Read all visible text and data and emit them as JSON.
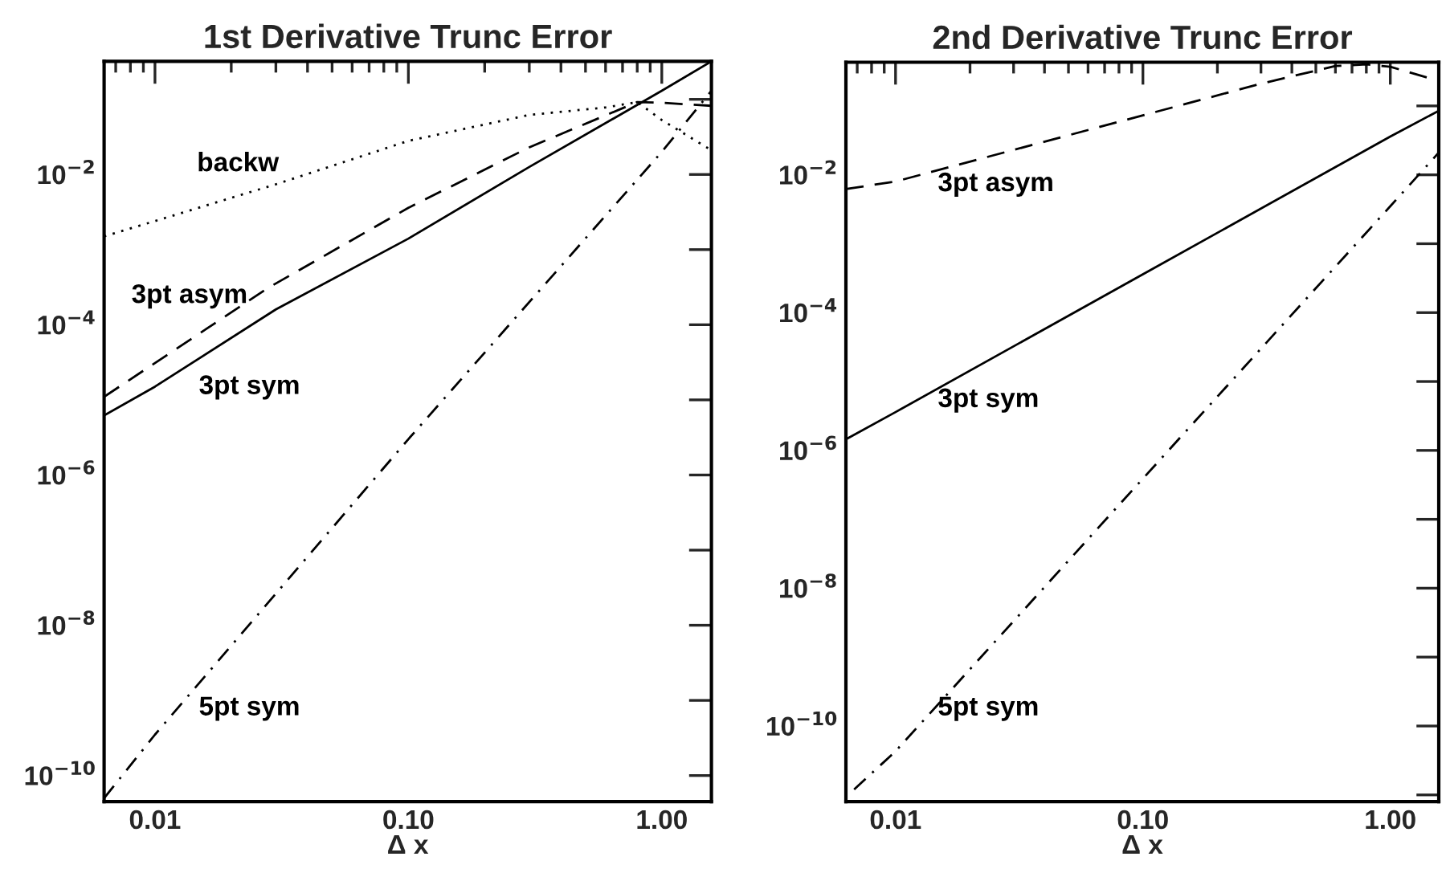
{
  "chart_data": [
    {
      "type": "line",
      "title": "1st Derivative Trunc Error",
      "xlabel": "Δ x",
      "log": "xy",
      "xlim": [
        0.0063,
        1.57
      ],
      "xticks": [
        {
          "value": 0.01,
          "label": "0.01"
        },
        {
          "value": 0.1,
          "label": "0.10"
        },
        {
          "value": 1,
          "label": "1.00"
        }
      ],
      "ylim": [
        4.5e-11,
        0.32
      ],
      "yticks": [
        {
          "value": 1e-10,
          "label": "10$^{−10}$"
        },
        {
          "value": 1e-09,
          "label": null
        },
        {
          "value": 1e-08,
          "label": "10$^{−8}$"
        },
        {
          "value": 1e-07,
          "label": null
        },
        {
          "value": 1e-06,
          "label": "10$^{−6}$"
        },
        {
          "value": 1e-05,
          "label": null
        },
        {
          "value": 0.0001,
          "label": "10$^{−4}$"
        },
        {
          "value": 0.001,
          "label": null
        },
        {
          "value": 0.01,
          "label": "10$^{−2}$"
        },
        {
          "value": 0.1,
          "label": null
        }
      ],
      "series": [
        {
          "name": "backw",
          "color": "#000000",
          "line_style": "dotted",
          "x": [
            0.0063,
            0.01,
            0.03,
            0.1,
            0.3,
            0.6,
            0.8,
            1.0,
            1.57
          ],
          "values": [
            0.0015,
            0.0024,
            0.0074,
            0.028,
            0.062,
            0.078,
            0.092,
            0.053,
            0.021
          ]
        },
        {
          "name": "3pt asym",
          "color": "#000000",
          "line_style": "dashed",
          "x": [
            0.0063,
            0.028,
            0.1,
            0.3,
            0.8,
            1.0,
            1.57
          ],
          "values": [
            1.1e-05,
            0.00031,
            0.0036,
            0.023,
            0.092,
            0.09,
            0.082
          ]
        },
        {
          "name": "3pt sym",
          "color": "#000000",
          "line_style": "solid",
          "x": [
            0.0063,
            0.01,
            0.03,
            0.1,
            0.3,
            1.0,
            1.57
          ],
          "values": [
            6.2e-06,
            1.5e-05,
            0.00016,
            0.0014,
            0.0126,
            0.13,
            0.32
          ]
        },
        {
          "name": "5pt sym",
          "color": "#000000",
          "line_style": "dashdot",
          "x": [
            0.0063,
            0.01,
            0.1,
            1.0,
            1.57
          ],
          "values": [
            5e-11,
            3.5e-10,
            3e-06,
            0.02,
            0.13
          ]
        }
      ]
    },
    {
      "type": "line",
      "title": "2nd Derivative Trunc Error",
      "xlabel": "Δ x",
      "log": "xy",
      "xlim": [
        0.0063,
        1.57
      ],
      "xticks": [
        {
          "value": 0.01,
          "label": "0.01"
        },
        {
          "value": 0.1,
          "label": "0.10"
        },
        {
          "value": 1,
          "label": "1.00"
        }
      ],
      "ylim": [
        8e-12,
        0.43
      ],
      "yticks": [
        {
          "value": 1e-11,
          "label": null
        },
        {
          "value": 1e-10,
          "label": "10$^{−10}$"
        },
        {
          "value": 1e-09,
          "label": null
        },
        {
          "value": 1e-08,
          "label": "10$^{−8}$"
        },
        {
          "value": 1e-07,
          "label": null
        },
        {
          "value": 1e-06,
          "label": "10$^{−6}$"
        },
        {
          "value": 1e-05,
          "label": null
        },
        {
          "value": 0.0001,
          "label": "10$^{−4}$"
        },
        {
          "value": 0.001,
          "label": null
        },
        {
          "value": 0.01,
          "label": "10$^{−2}$"
        },
        {
          "value": 0.1,
          "label": null
        }
      ],
      "series": [
        {
          "name": "3pt asym",
          "color": "#000000",
          "line_style": "dashed",
          "x": [
            0.0063,
            0.01,
            0.1,
            0.3,
            0.6,
            0.8,
            1.0,
            1.57
          ],
          "values": [
            0.0062,
            0.008,
            0.073,
            0.21,
            0.38,
            0.4,
            0.37,
            0.23
          ]
        },
        {
          "name": "3pt sym",
          "color": "#000000",
          "line_style": "solid",
          "x": [
            0.0063,
            0.01,
            0.1,
            1.0,
            1.57
          ],
          "values": [
            1.45e-06,
            3.6e-06,
            0.00036,
            0.036,
            0.085
          ]
        },
        {
          "name": "5pt sym",
          "color": "#000000",
          "line_style": "dashdot",
          "x": [
            0.0068,
            0.01,
            0.1,
            1.0,
            1.57
          ],
          "values": [
            1.2e-11,
            4.3e-11,
            3.9e-07,
            0.0035,
            0.021
          ]
        }
      ]
    }
  ]
}
